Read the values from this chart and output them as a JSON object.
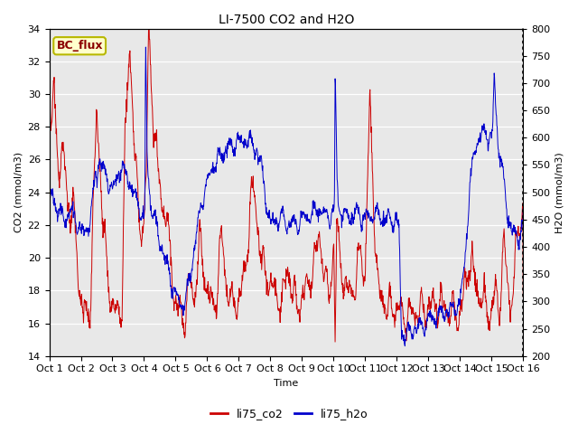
{
  "title": "LI-7500 CO2 and H2O",
  "xlabel": "Time",
  "ylabel_left": "CO2 (mmol/m3)",
  "ylabel_right": "H2O (mmol/m3)",
  "ylim_left": [
    14,
    34
  ],
  "ylim_right": [
    200,
    800
  ],
  "yticks_left": [
    14,
    16,
    18,
    20,
    22,
    24,
    26,
    28,
    30,
    32,
    34
  ],
  "yticks_right": [
    200,
    250,
    300,
    350,
    400,
    450,
    500,
    550,
    600,
    650,
    700,
    750,
    800
  ],
  "x_labels": [
    "Oct 1",
    "Oct 2",
    "Oct 3",
    "Oct 4",
    "Oct 5",
    "Oct 6",
    "Oct 7",
    "Oct 8",
    "Oct 9",
    "Oct 10",
    "Oct 11",
    "Oct 12",
    "Oct 13",
    "Oct 14",
    "Oct 15",
    "Oct 16"
  ],
  "color_co2": "#cc0000",
  "color_h2o": "#0000cc",
  "label_co2": "li75_co2",
  "label_h2o": "li75_h2o",
  "bg_color": "#e8e8e8",
  "annotation_text": "BC_flux",
  "annotation_bg": "#ffffcc",
  "annotation_border": "#b8b800",
  "title_fontsize": 10,
  "axis_fontsize": 8,
  "tick_fontsize": 8,
  "legend_fontsize": 9
}
